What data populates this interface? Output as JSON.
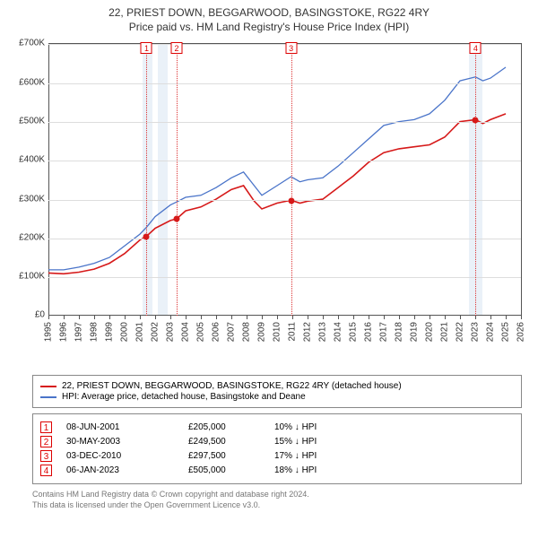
{
  "title_line1": "22, PRIEST DOWN, BEGGARWOOD, BASINGSTOKE, RG22 4RY",
  "title_line2": "Price paid vs. HM Land Registry's House Price Index (HPI)",
  "chart": {
    "type": "line",
    "background_color": "#ffffff",
    "grid_color": "#dddddd",
    "axis_color": "#555555",
    "xlim": [
      1995,
      2026
    ],
    "ylim": [
      0,
      700000
    ],
    "ytick_step": 100000,
    "ytick_prefix": "£",
    "ytick_suffix": "K",
    "ytick_divisor": 1000,
    "x_years": [
      1995,
      1996,
      1997,
      1998,
      1999,
      2000,
      2001,
      2002,
      2003,
      2004,
      2005,
      2006,
      2007,
      2008,
      2009,
      2010,
      2011,
      2012,
      2013,
      2014,
      2015,
      2016,
      2017,
      2018,
      2019,
      2020,
      2021,
      2022,
      2023,
      2024,
      2025,
      2026
    ],
    "shaded_bands": [
      {
        "from": 2001.2,
        "to": 2001.85,
        "color": "#eaf1f8"
      },
      {
        "from": 2002.15,
        "to": 2002.8,
        "color": "#eaf1f8"
      },
      {
        "from": 2022.6,
        "to": 2023.5,
        "color": "#eaf1f8"
      }
    ],
    "sale_markers": [
      {
        "n": 1,
        "x": 2001.44,
        "value": 205000,
        "dash_color": "#d33"
      },
      {
        "n": 2,
        "x": 2003.41,
        "value": 249500,
        "dash_color": "#d33"
      },
      {
        "n": 3,
        "x": 2010.92,
        "value": 297500,
        "dash_color": "#d33"
      },
      {
        "n": 4,
        "x": 2023.02,
        "value": 505000,
        "dash_color": "#d33"
      }
    ],
    "series": [
      {
        "name": "price_paid",
        "label": "22, PRIEST DOWN, BEGGARWOOD, BASINGSTOKE, RG22 4RY (detached house)",
        "color": "#d61919",
        "line_width": 1.6,
        "points": [
          [
            1995.0,
            110000
          ],
          [
            1996.0,
            108000
          ],
          [
            1997.0,
            112000
          ],
          [
            1998.0,
            120000
          ],
          [
            1999.0,
            135000
          ],
          [
            2000.0,
            160000
          ],
          [
            2001.0,
            195000
          ],
          [
            2001.44,
            205000
          ],
          [
            2002.0,
            225000
          ],
          [
            2003.0,
            245000
          ],
          [
            2003.41,
            249500
          ],
          [
            2004.0,
            270000
          ],
          [
            2005.0,
            280000
          ],
          [
            2006.0,
            300000
          ],
          [
            2007.0,
            325000
          ],
          [
            2007.8,
            335000
          ],
          [
            2008.5,
            295000
          ],
          [
            2009.0,
            275000
          ],
          [
            2010.0,
            290000
          ],
          [
            2010.92,
            297500
          ],
          [
            2011.5,
            290000
          ],
          [
            2012.0,
            295000
          ],
          [
            2013.0,
            300000
          ],
          [
            2014.0,
            330000
          ],
          [
            2015.0,
            360000
          ],
          [
            2016.0,
            395000
          ],
          [
            2017.0,
            420000
          ],
          [
            2018.0,
            430000
          ],
          [
            2019.0,
            435000
          ],
          [
            2020.0,
            440000
          ],
          [
            2021.0,
            460000
          ],
          [
            2022.0,
            500000
          ],
          [
            2023.02,
            505000
          ],
          [
            2023.5,
            495000
          ],
          [
            2024.0,
            505000
          ],
          [
            2025.0,
            520000
          ]
        ]
      },
      {
        "name": "hpi",
        "label": "HPI: Average price, detached house, Basingstoke and Deane",
        "color": "#4a74c9",
        "line_width": 1.3,
        "points": [
          [
            1995.0,
            118000
          ],
          [
            1996.0,
            118000
          ],
          [
            1997.0,
            125000
          ],
          [
            1998.0,
            135000
          ],
          [
            1999.0,
            150000
          ],
          [
            2000.0,
            180000
          ],
          [
            2001.0,
            210000
          ],
          [
            2001.44,
            228000
          ],
          [
            2002.0,
            255000
          ],
          [
            2003.0,
            285000
          ],
          [
            2003.41,
            293000
          ],
          [
            2004.0,
            305000
          ],
          [
            2005.0,
            310000
          ],
          [
            2006.0,
            330000
          ],
          [
            2007.0,
            355000
          ],
          [
            2007.8,
            370000
          ],
          [
            2008.5,
            335000
          ],
          [
            2009.0,
            310000
          ],
          [
            2010.0,
            335000
          ],
          [
            2010.92,
            358000
          ],
          [
            2011.5,
            345000
          ],
          [
            2012.0,
            350000
          ],
          [
            2013.0,
            355000
          ],
          [
            2014.0,
            385000
          ],
          [
            2015.0,
            420000
          ],
          [
            2016.0,
            455000
          ],
          [
            2017.0,
            490000
          ],
          [
            2018.0,
            500000
          ],
          [
            2019.0,
            505000
          ],
          [
            2020.0,
            520000
          ],
          [
            2021.0,
            555000
          ],
          [
            2022.0,
            605000
          ],
          [
            2023.02,
            615000
          ],
          [
            2023.5,
            605000
          ],
          [
            2024.0,
            612000
          ],
          [
            2025.0,
            640000
          ]
        ]
      }
    ]
  },
  "legend": {
    "series1_label": "22, PRIEST DOWN, BEGGARWOOD, BASINGSTOKE, RG22 4RY (detached house)",
    "series1_color": "#d61919",
    "series2_label": "HPI: Average price, detached house, Basingstoke and Deane",
    "series2_color": "#4a74c9"
  },
  "sales": [
    {
      "n": "1",
      "date": "08-JUN-2001",
      "price": "£205,000",
      "diff": "10% ↓ HPI"
    },
    {
      "n": "2",
      "date": "30-MAY-2003",
      "price": "£249,500",
      "diff": "15% ↓ HPI"
    },
    {
      "n": "3",
      "date": "03-DEC-2010",
      "price": "£297,500",
      "diff": "17% ↓ HPI"
    },
    {
      "n": "4",
      "date": "06-JAN-2023",
      "price": "£505,000",
      "diff": "18% ↓ HPI"
    }
  ],
  "footer_line1": "Contains HM Land Registry data © Crown copyright and database right 2024.",
  "footer_line2": "This data is licensed under the Open Government Licence v3.0."
}
